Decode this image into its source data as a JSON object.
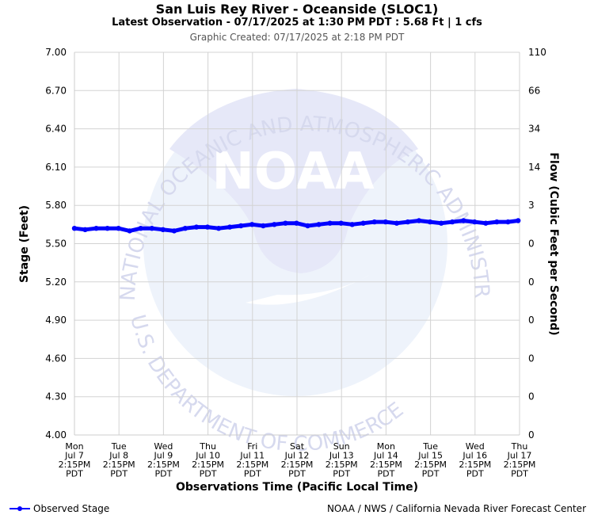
{
  "header": {
    "title": "San Luis Rey River - Oceanside (SLOC1)",
    "subtitle": "Latest Observation - 07/17/2025 at 1:30 PM PDT : 5.68 Ft | 1 cfs",
    "created": "Graphic Created: 07/17/2025 at 2:18 PM PDT"
  },
  "watermark": {
    "logo_text": "NOAA",
    "top_arc": "NATIONAL OCEANIC AND ATMOSPHERIC ADMINISTRATION",
    "bottom_arc": "U.S. DEPARTMENT OF COMMERCE",
    "colors": {
      "circle": "#eef3fb",
      "bird": "#e6e8f8"
    }
  },
  "legend": {
    "label": "Observed Stage",
    "icon": "line-with-dot"
  },
  "credit": "NOAA / NWS / California Nevada River Forecast Center",
  "chart_data": {
    "type": "line",
    "title": "San Luis Rey River - Oceanside (SLOC1)",
    "ylabel": "Stage (Feet)",
    "y2label": "Flow (Cubic Feet per Second)",
    "xlabel": "Observations Time (Pacific Local Time)",
    "ylim": [
      4.0,
      7.0
    ],
    "yticks": [
      "7.00",
      "6.70",
      "6.40",
      "6.10",
      "5.80",
      "5.50",
      "5.20",
      "4.90",
      "4.60",
      "4.30",
      "4.00"
    ],
    "y2ticks": [
      "110",
      "66",
      "34",
      "14",
      "3",
      "0",
      "0",
      "0",
      "0",
      "0",
      "0"
    ],
    "xticks": [
      [
        "Mon",
        "Jul 7",
        "2:15PM",
        "PDT"
      ],
      [
        "Tue",
        "Jul 8",
        "2:15PM",
        "PDT"
      ],
      [
        "Wed",
        "Jul 9",
        "2:15PM",
        "PDT"
      ],
      [
        "Thu",
        "Jul 10",
        "2:15PM",
        "PDT"
      ],
      [
        "Fri",
        "Jul 11",
        "2:15PM",
        "PDT"
      ],
      [
        "Sat",
        "Jul 12",
        "2:15PM",
        "PDT"
      ],
      [
        "Sun",
        "Jul 13",
        "2:15PM",
        "PDT"
      ],
      [
        "Mon",
        "Jul 14",
        "2:15PM",
        "PDT"
      ],
      [
        "Tue",
        "Jul 15",
        "2:15PM",
        "PDT"
      ],
      [
        "Wed",
        "Jul 16",
        "2:15PM",
        "PDT"
      ],
      [
        "Thu",
        "Jul 17",
        "2:15PM",
        "PDT"
      ]
    ],
    "xlim": [
      "2025-07-07 14:15",
      "2025-07-17 14:15"
    ],
    "grid": true,
    "line_color": "#0000ff",
    "series": [
      {
        "name": "Observed Stage",
        "x": [
          "2025-07-07 14:15",
          "2025-07-07 20:00",
          "2025-07-08 02:00",
          "2025-07-08 08:00",
          "2025-07-08 14:00",
          "2025-07-08 20:00",
          "2025-07-09 02:00",
          "2025-07-09 08:00",
          "2025-07-09 14:00",
          "2025-07-09 20:00",
          "2025-07-10 02:00",
          "2025-07-10 08:00",
          "2025-07-10 14:00",
          "2025-07-10 20:00",
          "2025-07-11 02:00",
          "2025-07-11 08:00",
          "2025-07-11 14:00",
          "2025-07-11 20:00",
          "2025-07-12 02:00",
          "2025-07-12 08:00",
          "2025-07-12 14:00",
          "2025-07-12 20:00",
          "2025-07-13 02:00",
          "2025-07-13 08:00",
          "2025-07-13 14:00",
          "2025-07-13 20:00",
          "2025-07-14 02:00",
          "2025-07-14 08:00",
          "2025-07-14 14:00",
          "2025-07-14 20:00",
          "2025-07-15 02:00",
          "2025-07-15 08:00",
          "2025-07-15 14:00",
          "2025-07-15 20:00",
          "2025-07-16 02:00",
          "2025-07-16 08:00",
          "2025-07-16 14:00",
          "2025-07-16 20:00",
          "2025-07-17 02:00",
          "2025-07-17 08:00",
          "2025-07-17 13:30"
        ],
        "y": [
          5.62,
          5.61,
          5.62,
          5.62,
          5.62,
          5.6,
          5.62,
          5.62,
          5.61,
          5.6,
          5.62,
          5.63,
          5.63,
          5.62,
          5.63,
          5.64,
          5.65,
          5.64,
          5.65,
          5.66,
          5.66,
          5.64,
          5.65,
          5.66,
          5.66,
          5.65,
          5.66,
          5.67,
          5.67,
          5.66,
          5.67,
          5.68,
          5.67,
          5.66,
          5.67,
          5.68,
          5.67,
          5.66,
          5.67,
          5.67,
          5.68
        ]
      }
    ]
  }
}
